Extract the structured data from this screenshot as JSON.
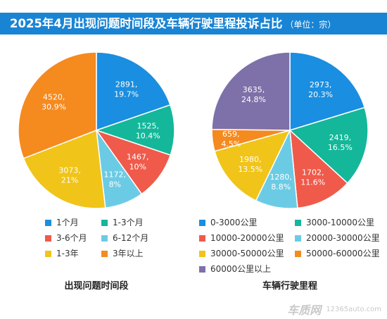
{
  "header": {
    "title": "2025年4月出现问题时间段及车辆行驶里程投诉占比",
    "unit": "（单位：宗）"
  },
  "colors": {
    "header_bg": "#1a84d4",
    "blue": "#1a8ee0",
    "teal": "#14b79a",
    "red": "#f05a4a",
    "light_blue": "#6ccbe4",
    "yellow": "#f0c419",
    "orange": "#f58a1f",
    "purple": "#7e70a8"
  },
  "watermark": {
    "logo": "车质网",
    "url": "12365auto.com"
  },
  "chart_data": [
    {
      "type": "pie",
      "title": "出现问题时间段",
      "slices": [
        {
          "name": "1个月",
          "value": 2891,
          "percent": "19.7%",
          "color": "#1a8ee0"
        },
        {
          "name": "1-3个月",
          "value": 1525,
          "percent": "10.4%",
          "color": "#14b79a"
        },
        {
          "name": "3-6个月",
          "value": 1467,
          "percent": "10%",
          "color": "#f05a4a"
        },
        {
          "name": "6-12个月",
          "value": 1172,
          "percent": "8%",
          "color": "#6ccbe4"
        },
        {
          "name": "1-3年",
          "value": 3073,
          "percent": "21%",
          "color": "#f0c419"
        },
        {
          "name": "3年以上",
          "value": 4520,
          "percent": "30.9%",
          "color": "#f58a1f"
        }
      ]
    },
    {
      "type": "pie",
      "title": "车辆行驶里程",
      "slices": [
        {
          "name": "0-3000公里",
          "value": 2973,
          "percent": "20.3%",
          "color": "#1a8ee0"
        },
        {
          "name": "3000-10000公里",
          "value": 2419,
          "percent": "16.5%",
          "color": "#14b79a"
        },
        {
          "name": "10000-20000公里",
          "value": 1702,
          "percent": "11.6%",
          "color": "#f05a4a"
        },
        {
          "name": "20000-30000公里",
          "value": 1280,
          "percent": "8.8%",
          "color": "#6ccbe4"
        },
        {
          "name": "30000-50000公里",
          "value": 1980,
          "percent": "13.5%",
          "color": "#f0c419"
        },
        {
          "name": "50000-60000公里",
          "value": 659,
          "percent": "4.5%",
          "color": "#f58a1f"
        },
        {
          "name": "60000公里以上",
          "value": 3635,
          "percent": "24.8%",
          "color": "#7e70a8"
        }
      ]
    }
  ]
}
